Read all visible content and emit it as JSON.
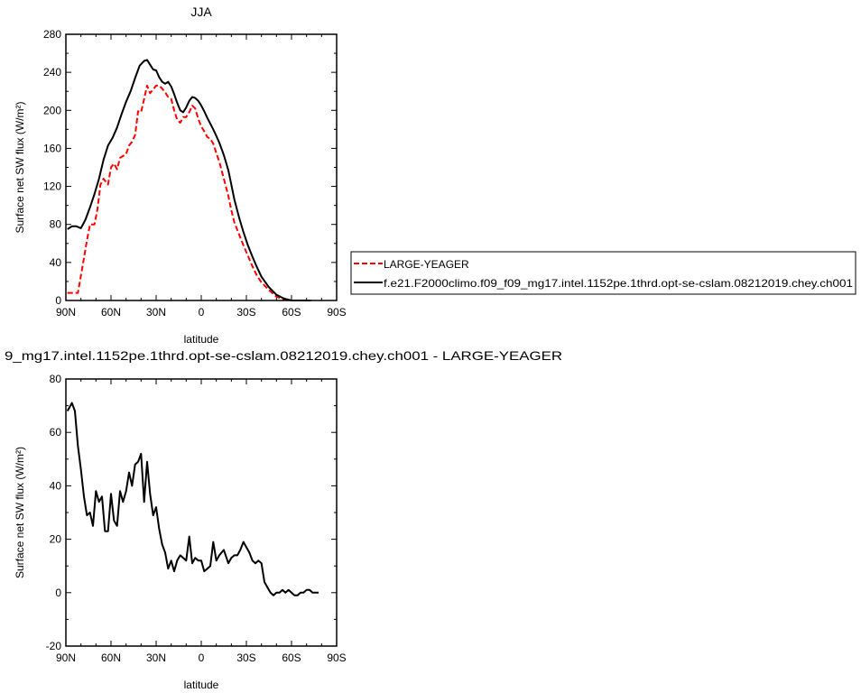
{
  "chart_data": [
    {
      "type": "line",
      "title": "JJA",
      "xlabel": "latitude",
      "ylabel": "Surface net SW flux (W/m²)",
      "xlim": [
        90,
        -90
      ],
      "ylim": [
        0,
        280
      ],
      "xticks": [
        90,
        60,
        30,
        0,
        -30,
        -60,
        -90
      ],
      "xtick_labels": [
        "90N",
        "60N",
        "30N",
        "0",
        "30S",
        "60S",
        "90S"
      ],
      "yticks": [
        0,
        40,
        80,
        120,
        160,
        200,
        240,
        280
      ],
      "ytick_labels": [
        "0",
        "40",
        "80",
        "120",
        "160",
        "200",
        "240",
        "280"
      ],
      "legend": {
        "placement": "outside-right"
      },
      "series": [
        {
          "name": "LARGE-YEAGER",
          "color": "#ff0000",
          "style": "dashed",
          "x": [
            89,
            85,
            82,
            79,
            76,
            74,
            71,
            69,
            67,
            65,
            62,
            60,
            58,
            56,
            54,
            52,
            50,
            48,
            46,
            44,
            42,
            40,
            38,
            36,
            34,
            32,
            30,
            28,
            26,
            24,
            22,
            20,
            18,
            16,
            14,
            12,
            10,
            8,
            6,
            4,
            2,
            0,
            -2,
            -4,
            -6,
            -8,
            -10,
            -12,
            -15,
            -18,
            -20,
            -22,
            -25,
            -28,
            -31,
            -34,
            -37,
            -40,
            -45,
            -50,
            -55,
            -60,
            -63,
            -65,
            -68,
            -70,
            -73
          ],
          "y": [
            8,
            8,
            8,
            35,
            63,
            80,
            80,
            96,
            122,
            128,
            122,
            140,
            144,
            138,
            150,
            152,
            154,
            163,
            167,
            174,
            199,
            198,
            212,
            226,
            218,
            222,
            226,
            226,
            223,
            219,
            214,
            212,
            200,
            190,
            187,
            193,
            193,
            198,
            205,
            202,
            191,
            183,
            178,
            172,
            170,
            165,
            155,
            146,
            128,
            110,
            95,
            82,
            70,
            58,
            47,
            36,
            26,
            19,
            11,
            4,
            1,
            0,
            0,
            0,
            0,
            0,
            0
          ]
        },
        {
          "name": "f.e21.F2000climo.f09_f09_mg17.intel.1152pe.1thrd.opt-se-cslam.08212019.chey.ch001",
          "color": "#000000",
          "style": "solid",
          "x": [
            89,
            86,
            83,
            80,
            77,
            74,
            71,
            68,
            65,
            62,
            59,
            56,
            53,
            50,
            47,
            44,
            41,
            38,
            36,
            34,
            32,
            30,
            28,
            26,
            24,
            22,
            20,
            18,
            16,
            14,
            12,
            10,
            8,
            6,
            4,
            2,
            0,
            -2,
            -4,
            -6,
            -8,
            -10,
            -12,
            -15,
            -18,
            -20,
            -22,
            -25,
            -28,
            -31,
            -34,
            -37,
            -40,
            -45,
            -50,
            -55,
            -60,
            -63,
            -66,
            -69,
            -72
          ],
          "y": [
            75,
            78,
            78,
            76,
            85,
            98,
            112,
            128,
            148,
            163,
            171,
            182,
            196,
            209,
            220,
            234,
            247,
            252,
            253,
            248,
            243,
            242,
            235,
            230,
            228,
            230,
            225,
            217,
            208,
            200,
            198,
            203,
            210,
            214,
            213,
            210,
            205,
            199,
            192,
            186,
            180,
            173,
            166,
            153,
            137,
            122,
            106,
            88,
            72,
            58,
            46,
            35,
            25,
            14,
            6,
            2,
            0,
            0,
            0,
            0,
            0
          ]
        }
      ]
    },
    {
      "type": "line",
      "title": "9_mg17.intel.1152pe.1thrd.opt-se-cslam.08212019.chey.ch001 - LARGE-YEAGER",
      "xlabel": "latitude",
      "ylabel": "Surface net SW flux (W/m²)",
      "xlim": [
        90,
        -90
      ],
      "ylim": [
        -20,
        80
      ],
      "xticks": [
        90,
        60,
        30,
        0,
        -30,
        -60,
        -90
      ],
      "xtick_labels": [
        "90N",
        "60N",
        "30N",
        "0",
        "30S",
        "60S",
        "90S"
      ],
      "yticks": [
        -20,
        0,
        20,
        40,
        60,
        80
      ],
      "ytick_labels": [
        "-20",
        "0",
        "20",
        "40",
        "60",
        "80"
      ],
      "series": [
        {
          "color": "#000000",
          "style": "solid",
          "x": [
            89,
            86,
            84,
            82,
            80,
            78,
            76,
            74,
            72,
            70,
            68,
            66,
            64,
            62,
            60,
            58,
            56,
            54,
            52,
            50,
            48,
            46,
            44,
            42,
            40,
            38,
            36,
            34,
            32,
            30,
            28,
            26,
            24,
            22,
            20,
            18,
            16,
            14,
            12,
            10,
            8,
            6,
            4,
            2,
            0,
            -2,
            -4,
            -6,
            -8,
            -10,
            -12,
            -15,
            -18,
            -20,
            -22,
            -24,
            -26,
            -28,
            -30,
            -32,
            -34,
            -36,
            -38,
            -40,
            -42,
            -44,
            -46,
            -48,
            -50,
            -52,
            -54,
            -56,
            -58,
            -60,
            -62,
            -64,
            -66,
            -68,
            -70,
            -72,
            -74,
            -76,
            -78
          ],
          "y": [
            68,
            71,
            68,
            55,
            46,
            36,
            29,
            30,
            25,
            38,
            34,
            36,
            23,
            23,
            37,
            27,
            25,
            38,
            34,
            38,
            45,
            40,
            48,
            49,
            52,
            34,
            49,
            37,
            29,
            32,
            24,
            18,
            15,
            9,
            12,
            8,
            12,
            14,
            13,
            12,
            21,
            11,
            13,
            12,
            12,
            8,
            9,
            10,
            19,
            12,
            14,
            16,
            11,
            13,
            14,
            14,
            16,
            19,
            17,
            15,
            12,
            11,
            12,
            11,
            4,
            2,
            0,
            -1,
            0,
            0,
            1,
            0,
            1,
            0,
            -1,
            -1,
            0,
            0,
            1,
            1,
            0,
            0,
            0
          ]
        }
      ]
    }
  ]
}
